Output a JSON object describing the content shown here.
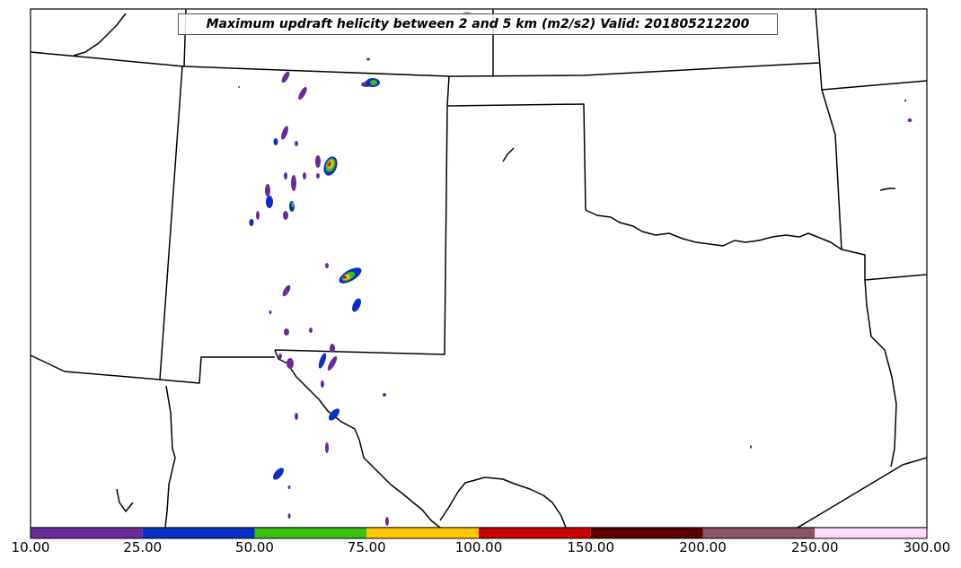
{
  "title": "Maximum updraft helicity between 2 and 5 km (m2/s2) Valid: 201805212200",
  "colorbar": {
    "ticks": [
      "10.00",
      "25.00",
      "50.00",
      "75.00",
      "100.00",
      "150.00",
      "200.00",
      "250.00",
      "300.00"
    ],
    "colors": [
      "#6a2a9a",
      "#0a2ec8",
      "#3cc010",
      "#ffc800",
      "#c80000",
      "#5a0000",
      "#8a5468",
      "#fcdcf8"
    ]
  },
  "legend_levels": [
    10,
    25,
    50,
    75,
    100,
    150,
    200,
    250,
    300
  ]
}
